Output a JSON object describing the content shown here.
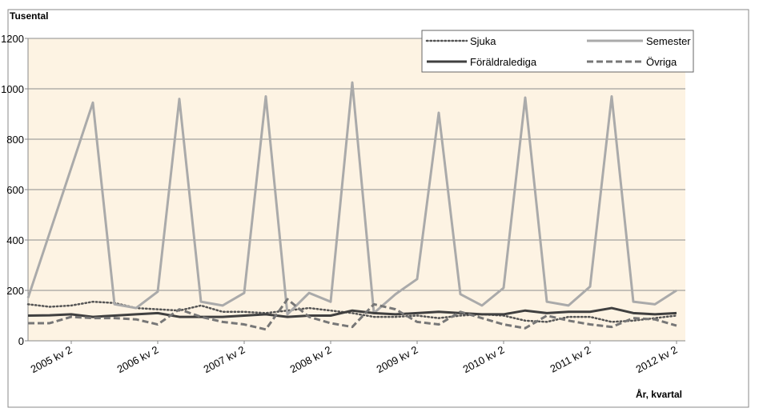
{
  "chart_data": {
    "type": "line",
    "y_label": "Tusental",
    "x_label": "År, kvartal",
    "categories": [
      null,
      null,
      "2005 kv 2",
      null,
      null,
      null,
      "2006 kv 2",
      null,
      null,
      null,
      "2007 kv 2",
      null,
      null,
      null,
      "2008 kv 2",
      null,
      null,
      null,
      "2009 kv 2",
      null,
      null,
      null,
      "2010 kv 2",
      null,
      null,
      null,
      "2011 kv 2",
      null,
      null,
      null,
      "2012 kv 2"
    ],
    "series": [
      {
        "name": "Sjuka",
        "color": "#555555",
        "style": "dotted",
        "values": [
          145,
          135,
          140,
          155,
          150,
          130,
          125,
          120,
          140,
          115,
          115,
          110,
          120,
          130,
          120,
          110,
          95,
          95,
          100,
          90,
          100,
          105,
          100,
          80,
          75,
          95,
          95,
          75,
          80,
          90,
          100
        ]
      },
      {
        "name": "Semester",
        "color": "#aaaaaa",
        "style": "solid",
        "values": [
          170,
          428,
          686,
          945,
          145,
          130,
          195,
          960,
          155,
          140,
          190,
          970,
          105,
          190,
          155,
          1025,
          110,
          185,
          245,
          905,
          185,
          140,
          210,
          965,
          155,
          140,
          215,
          970,
          155,
          145,
          200
        ]
      },
      {
        "name": "Föräldralediga",
        "color": "#404040",
        "style": "thick",
        "values": [
          100,
          101,
          105,
          95,
          100,
          105,
          110,
          95,
          95,
          95,
          100,
          105,
          95,
          100,
          100,
          120,
          110,
          105,
          110,
          115,
          110,
          105,
          105,
          120,
          110,
          115,
          115,
          130,
          110,
          105,
          110
        ]
      },
      {
        "name": "Övriga",
        "color": "#777777",
        "style": "dashed",
        "values": [
          70,
          70,
          95,
          90,
          90,
          85,
          65,
          125,
          95,
          75,
          65,
          45,
          165,
          95,
          70,
          55,
          145,
          125,
          75,
          65,
          115,
          90,
          65,
          50,
          100,
          80,
          65,
          55,
          90,
          85,
          60
        ]
      }
    ],
    "ylim": [
      0,
      1200
    ],
    "yticks": [
      0,
      200,
      400,
      600,
      800,
      1000,
      1200
    ],
    "grid": true
  }
}
